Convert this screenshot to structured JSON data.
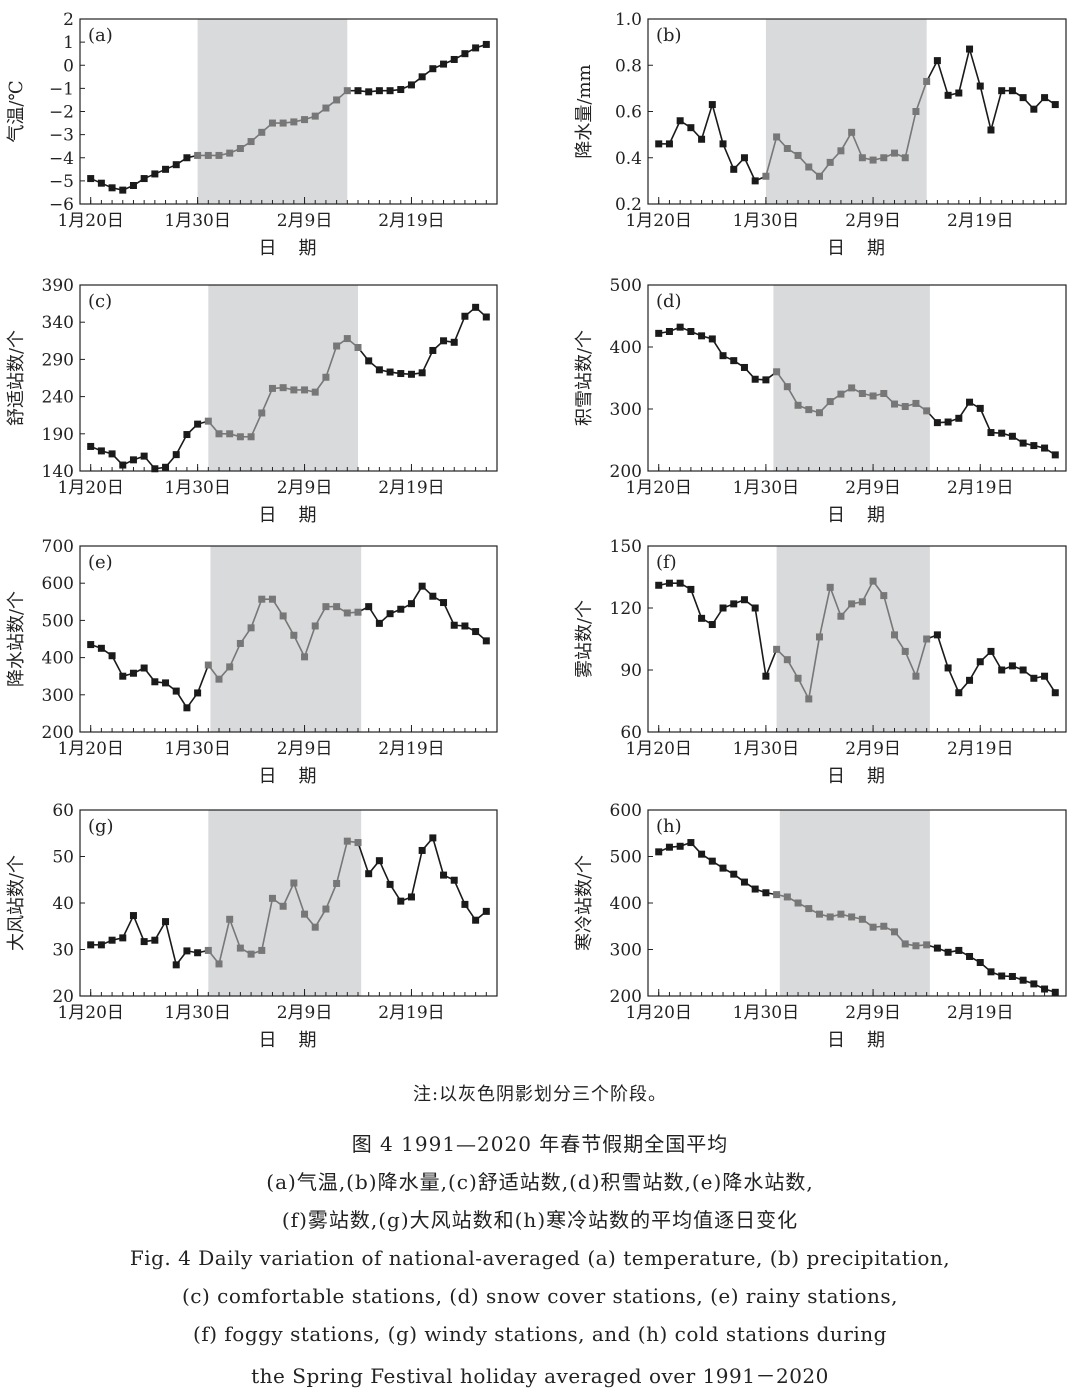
{
  "note": "注:以灰色阴影划分三个阶段。",
  "caption": {
    "cn_line1": "图 4   1991—2020 年春节假期全国平均",
    "cn_line2": "(a)气温,(b)降水量,(c)舒适站数,(d)积雪站数,(e)降水站数,",
    "cn_line3": "(f)雾站数,(g)大风站数和(h)寒冷站数的平均值逐日变化",
    "en_line1": "Fig. 4   Daily variation of national-averaged (a) temperature, (b) precipitation,",
    "en_line2": "(c) comfortable stations, (d) snow cover stations, (e) rainy stations,",
    "en_line3": "(f) foggy stations, (g) windy stations, and (h) cold stations during",
    "en_line4": "the Spring Festival holiday averaged over 1991－2020"
  },
  "colors": {
    "shade": "#d9dadc",
    "line_black": "#1a1a1a",
    "line_gray": "#777777",
    "axis": "#222222"
  },
  "chart_data": [
    {
      "type": "line",
      "panel": "(a)",
      "ylabel": "气温/℃",
      "xlabel": "日　期",
      "x_ticks": [
        0,
        10,
        20,
        30
      ],
      "x_tick_labels": [
        "1月20日",
        "1月30日",
        "2月9日",
        "2月19日"
      ],
      "xlim": [
        -1,
        38
      ],
      "ylim": [
        -6,
        2
      ],
      "y_ticks": [
        -6,
        -5,
        -4,
        -3,
        -2,
        -1,
        0,
        1,
        2
      ],
      "y_tick_labels": [
        "−6",
        "−5",
        "−4",
        "−3",
        "−2",
        "−1",
        "0",
        "1",
        "2"
      ],
      "shade_days": [
        10,
        24
      ],
      "gray_days": [
        10,
        24
      ],
      "values": [
        -4.9,
        -5.1,
        -5.3,
        -5.4,
        -5.2,
        -4.9,
        -4.7,
        -4.5,
        -4.3,
        -4.0,
        -3.9,
        -3.9,
        -3.9,
        -3.8,
        -3.6,
        -3.3,
        -2.9,
        -2.5,
        -2.5,
        -2.45,
        -2.35,
        -2.2,
        -1.85,
        -1.5,
        -1.1,
        -1.1,
        -1.15,
        -1.1,
        -1.1,
        -1.05,
        -0.85,
        -0.5,
        -0.15,
        0.05,
        0.25,
        0.5,
        0.75,
        0.9
      ]
    },
    {
      "type": "line",
      "panel": "(b)",
      "ylabel": "降水量/mm",
      "xlabel": "日　期",
      "x_ticks": [
        0,
        10,
        20,
        30
      ],
      "x_tick_labels": [
        "1月20日",
        "1月30日",
        "2月9日",
        "2月19日"
      ],
      "xlim": [
        -1,
        38
      ],
      "ylim": [
        0.2,
        1.0
      ],
      "y_ticks": [
        0.2,
        0.4,
        0.6,
        0.8,
        1.0
      ],
      "y_tick_labels": [
        "0.2",
        "0.4",
        "0.6",
        "0.8",
        "1.0"
      ],
      "shade_days": [
        10,
        25
      ],
      "gray_days": [
        10,
        25
      ],
      "values": [
        0.46,
        0.46,
        0.56,
        0.53,
        0.48,
        0.63,
        0.46,
        0.35,
        0.4,
        0.3,
        0.32,
        0.49,
        0.44,
        0.41,
        0.36,
        0.32,
        0.38,
        0.43,
        0.51,
        0.4,
        0.39,
        0.4,
        0.42,
        0.4,
        0.6,
        0.73,
        0.82,
        0.67,
        0.68,
        0.87,
        0.71,
        0.52,
        0.69,
        0.69,
        0.66,
        0.61,
        0.66,
        0.63
      ]
    },
    {
      "type": "line",
      "panel": "(c)",
      "ylabel": "舒适站数/个",
      "xlabel": "日　期",
      "x_ticks": [
        0,
        10,
        20,
        30
      ],
      "x_tick_labels": [
        "1月20日",
        "1月30日",
        "2月9日",
        "2月19日"
      ],
      "xlim": [
        -1,
        38
      ],
      "ylim": [
        140,
        390
      ],
      "y_ticks": [
        140,
        190,
        240,
        290,
        340,
        390
      ],
      "y_tick_labels": [
        "140",
        "190",
        "240",
        "290",
        "340",
        "390"
      ],
      "shade_days": [
        11,
        25
      ],
      "gray_days": [
        11,
        25
      ],
      "values": [
        173,
        167,
        163,
        148,
        155,
        160,
        143,
        145,
        162,
        189,
        203,
        207,
        190,
        190,
        186,
        186,
        218,
        251,
        252,
        249,
        249,
        246,
        266,
        308,
        318,
        306,
        288,
        276,
        273,
        271,
        270,
        272,
        302,
        315,
        313,
        348,
        360,
        347
      ]
    },
    {
      "type": "line",
      "panel": "(d)",
      "ylabel": "积雪站数/个",
      "xlabel": "日　期",
      "x_ticks": [
        0,
        10,
        20,
        30
      ],
      "x_tick_labels": [
        "1月20日",
        "1月30日",
        "2月9日",
        "2月19日"
      ],
      "xlim": [
        -1,
        38
      ],
      "ylim": [
        200,
        500
      ],
      "y_ticks": [
        200,
        300,
        400,
        500
      ],
      "y_tick_labels": [
        "200",
        "300",
        "400",
        "500"
      ],
      "shade_days": [
        10.7,
        25.3
      ],
      "gray_days": [
        11,
        25
      ],
      "values": [
        422,
        425,
        432,
        425,
        418,
        413,
        386,
        378,
        367,
        348,
        347,
        360,
        336,
        306,
        299,
        294,
        312,
        324,
        334,
        325,
        321,
        325,
        308,
        304,
        309,
        297,
        278,
        279,
        285,
        311,
        301,
        262,
        261,
        256,
        245,
        241,
        237,
        226
      ]
    },
    {
      "type": "line",
      "panel": "(e)",
      "ylabel": "降水站数/个",
      "xlabel": "日　期",
      "x_ticks": [
        0,
        10,
        20,
        30
      ],
      "x_tick_labels": [
        "1月20日",
        "1月30日",
        "2月9日",
        "2月19日"
      ],
      "xlim": [
        -1,
        38
      ],
      "ylim": [
        200,
        700
      ],
      "y_ticks": [
        200,
        300,
        400,
        500,
        600,
        700
      ],
      "y_tick_labels": [
        "200",
        "300",
        "400",
        "500",
        "600",
        "700"
      ],
      "shade_days": [
        11.2,
        25.3
      ],
      "gray_days": [
        11,
        25
      ],
      "values": [
        435,
        425,
        405,
        350,
        358,
        372,
        335,
        332,
        310,
        265,
        305,
        380,
        342,
        375,
        438,
        480,
        557,
        557,
        512,
        460,
        402,
        485,
        537,
        537,
        520,
        522,
        537,
        492,
        518,
        530,
        545,
        592,
        565,
        548,
        487,
        485,
        470,
        445
      ]
    },
    {
      "type": "line",
      "panel": "(f)",
      "ylabel": "雾站数/个",
      "xlabel": "日　期",
      "x_ticks": [
        0,
        10,
        20,
        30
      ],
      "x_tick_labels": [
        "1月20日",
        "1月30日",
        "2月9日",
        "2月19日"
      ],
      "xlim": [
        -1,
        38
      ],
      "ylim": [
        60,
        150
      ],
      "y_ticks": [
        60,
        90,
        120,
        150
      ],
      "y_tick_labels": [
        "60",
        "90",
        "120",
        "150"
      ],
      "shade_days": [
        11,
        25.3
      ],
      "gray_days": [
        11,
        25
      ],
      "values": [
        131,
        132,
        132,
        129,
        115,
        112,
        120,
        122,
        124,
        120,
        87,
        100,
        95,
        86,
        76,
        106,
        130,
        116,
        122,
        123,
        133,
        126,
        107,
        99,
        87,
        105,
        107,
        91,
        79,
        85,
        94,
        99,
        90,
        92,
        90,
        86,
        87,
        79
      ]
    },
    {
      "type": "line",
      "panel": "(g)",
      "ylabel": "大风站数/个",
      "xlabel": "日　期",
      "x_ticks": [
        0,
        10,
        20,
        30
      ],
      "x_tick_labels": [
        "1月20日",
        "1月30日",
        "2月9日",
        "2月19日"
      ],
      "xlim": [
        -1,
        38
      ],
      "ylim": [
        20,
        60
      ],
      "y_ticks": [
        20,
        30,
        40,
        50,
        60
      ],
      "y_tick_labels": [
        "20",
        "30",
        "40",
        "50",
        "60"
      ],
      "shade_days": [
        11,
        25.3
      ],
      "gray_days": [
        11,
        25
      ],
      "values": [
        31,
        31,
        32,
        32.5,
        37.3,
        31.7,
        32,
        36,
        26.7,
        29.7,
        29.3,
        29.8,
        26.9,
        36.5,
        30.3,
        29,
        29.8,
        41,
        39.3,
        44.3,
        37.6,
        34.8,
        38.7,
        44.2,
        53.3,
        53,
        46.3,
        49.1,
        44,
        40.4,
        41.3,
        51.3,
        54,
        46,
        44.9,
        39.7,
        36.3,
        38.2
      ]
    },
    {
      "type": "line",
      "panel": "(h)",
      "ylabel": "寒冷站数/个",
      "xlabel": "日　期",
      "x_ticks": [
        0,
        10,
        20,
        30
      ],
      "x_tick_labels": [
        "1月20日",
        "1月30日",
        "2月9日",
        "2月19日"
      ],
      "xlim": [
        -1,
        38
      ],
      "ylim": [
        200,
        600
      ],
      "y_ticks": [
        200,
        300,
        400,
        500,
        600
      ],
      "y_tick_labels": [
        "200",
        "300",
        "400",
        "500",
        "600"
      ],
      "shade_days": [
        11.3,
        25.3
      ],
      "gray_days": [
        11,
        25
      ],
      "values": [
        510,
        520,
        522,
        530,
        505,
        490,
        475,
        462,
        445,
        430,
        422,
        418,
        413,
        400,
        388,
        376,
        370,
        376,
        370,
        365,
        348,
        350,
        338,
        312,
        308,
        310,
        303,
        294,
        298,
        285,
        272,
        252,
        243,
        242,
        234,
        226,
        215,
        208
      ]
    }
  ]
}
